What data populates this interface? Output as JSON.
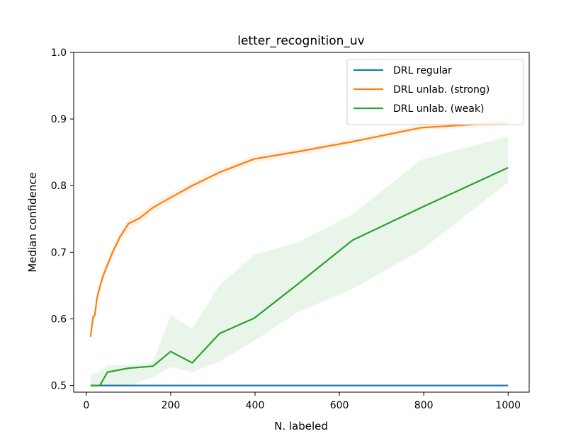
{
  "chart_data": {
    "type": "line",
    "title": "letter_recognition_uv",
    "xlabel": "N. labeled",
    "ylabel": "Median confidence",
    "xlim": [
      -30,
      1050
    ],
    "ylim": [
      0.49,
      1.0
    ],
    "xticks": [
      0,
      200,
      400,
      600,
      800,
      1000
    ],
    "yticks": [
      0.5,
      0.6,
      0.7,
      0.8,
      0.9,
      1.0
    ],
    "xtick_labels": [
      "0",
      "200",
      "400",
      "600",
      "800",
      "1000"
    ],
    "ytick_labels": [
      "0.5",
      "0.6",
      "0.7",
      "0.8",
      "0.9",
      "1.0"
    ],
    "grid": false,
    "legend_position": "top-right",
    "series": [
      {
        "name": "DRL regular",
        "color": "#1f77b4",
        "x": [
          10,
          1000
        ],
        "y": [
          0.5,
          0.5
        ],
        "band_lower": [
          0.5,
          0.5
        ],
        "band_upper": [
          0.5,
          0.5
        ]
      },
      {
        "name": "DRL unlab. (strong)",
        "color": "#ff7f0e",
        "x": [
          10,
          16,
          20,
          25,
          32,
          40,
          50,
          63,
          79,
          100,
          126,
          158,
          200,
          251,
          316,
          398,
          501,
          631,
          794,
          1000
        ],
        "y": [
          0.573,
          0.603,
          0.605,
          0.63,
          0.648,
          0.665,
          0.681,
          0.701,
          0.722,
          0.743,
          0.751,
          0.767,
          0.782,
          0.8,
          0.82,
          0.84,
          0.851,
          0.866,
          0.887,
          0.895
        ],
        "band_lower": [
          0.563,
          0.595,
          0.598,
          0.622,
          0.64,
          0.657,
          0.673,
          0.693,
          0.714,
          0.735,
          0.744,
          0.76,
          0.775,
          0.794,
          0.814,
          0.834,
          0.846,
          0.861,
          0.883,
          0.89
        ],
        "band_upper": [
          0.585,
          0.611,
          0.613,
          0.638,
          0.656,
          0.673,
          0.689,
          0.709,
          0.73,
          0.751,
          0.758,
          0.774,
          0.789,
          0.806,
          0.826,
          0.846,
          0.856,
          0.871,
          0.892,
          0.9
        ]
      },
      {
        "name": "DRL unlab. (weak)",
        "color": "#2ca02c",
        "x": [
          10,
          32,
          50,
          100,
          158,
          200,
          251,
          316,
          398,
          501,
          631,
          794,
          1000
        ],
        "y": [
          0.5,
          0.5,
          0.52,
          0.526,
          0.529,
          0.551,
          0.534,
          0.578,
          0.601,
          0.652,
          0.718,
          0.767,
          0.827
        ],
        "band_lower": [
          0.5,
          0.5,
          0.5,
          0.5,
          0.512,
          0.528,
          0.52,
          0.536,
          0.567,
          0.61,
          0.645,
          0.703,
          0.805
        ],
        "band_upper": [
          0.517,
          0.52,
          0.53,
          0.531,
          0.535,
          0.606,
          0.585,
          0.651,
          0.696,
          0.715,
          0.757,
          0.839,
          0.874
        ]
      }
    ]
  }
}
